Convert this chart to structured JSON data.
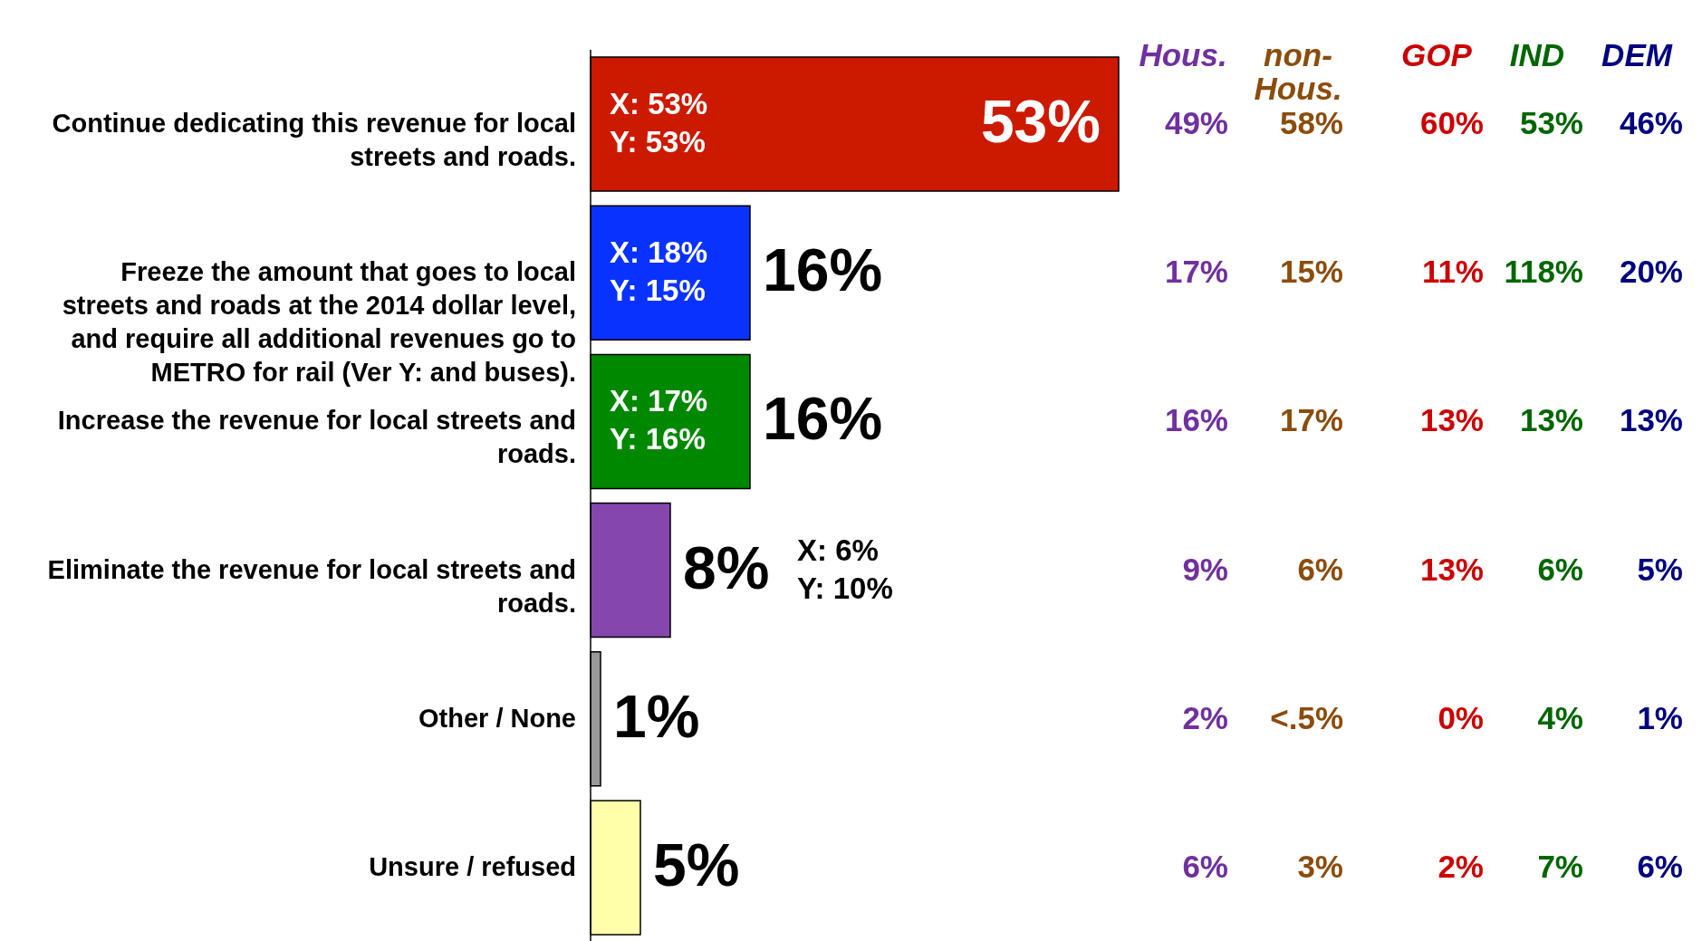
{
  "chart_data": {
    "type": "bar",
    "orientation": "horizontal",
    "categories": [
      "Continue dedicating this revenue for local streets and roads.",
      "Freeze the amount that goes to local streets and roads at the 2014 dollar level, and require all additional revenues go to METRO for rail (Ver Y: and buses).",
      "Increase the revenue for local streets and roads.",
      "Eliminate the revenue for local streets and roads.",
      "Other  / None",
      "Unsure / refused"
    ],
    "values": [
      53,
      16,
      16,
      8,
      1,
      5
    ],
    "colors": [
      "#cc1a00",
      "#0a32ff",
      "#008800",
      "#8547ad",
      "#999999",
      "#ffffaa"
    ],
    "value_labels": [
      "53%",
      "16%",
      "16%",
      "8%",
      "1%",
      "5%"
    ],
    "annotations": [
      "Hous.",
      "non-Hous.",
      "GOP",
      "IND",
      "DEM",
      "49%",
      "58%",
      "60%",
      "53%",
      "46%",
      "17%",
      "15%",
      "11%",
      "118%",
      "20%",
      "16%",
      "17%",
      "13%",
      "13%",
      "13%",
      "9%",
      "6%",
      "13%",
      "6%",
      "5%",
      "2%",
      "<.5%",
      "0%",
      "4%",
      "1%",
      "6%",
      "3%",
      "2%",
      "7%",
      "6%",
      "X: 53%",
      "Y: 53%",
      "X: 18%",
      "Y: 15%",
      "X: 17%",
      "Y: 16%",
      "X: 6%",
      "Y: 10%"
    ]
  }
}
